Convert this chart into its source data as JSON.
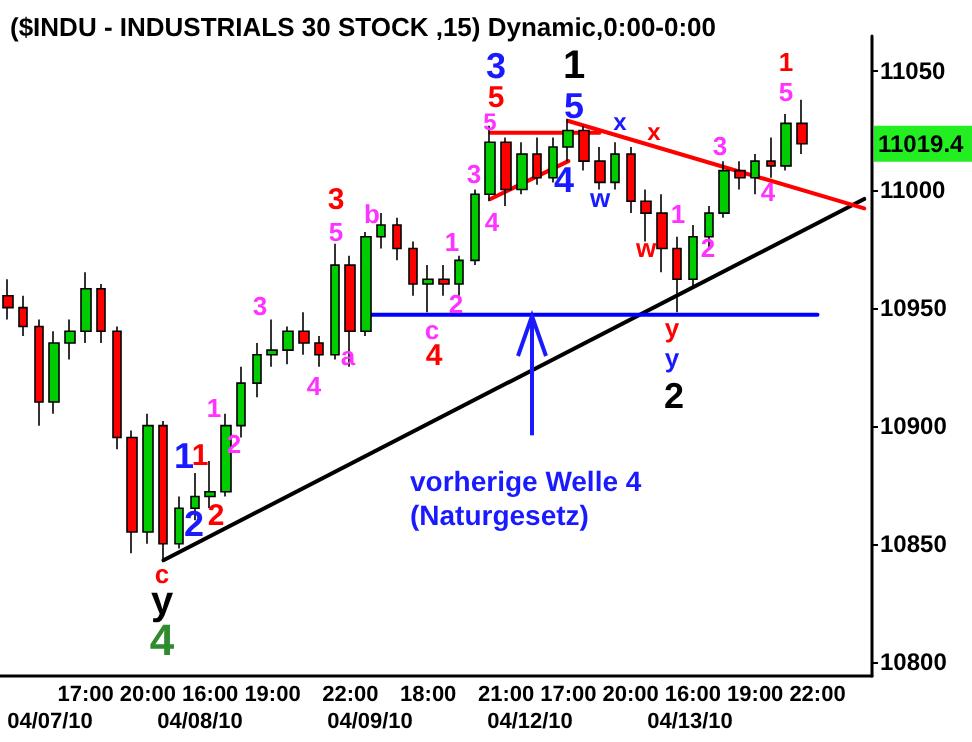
{
  "chart_data": {
    "type": "candlestick",
    "title": "($INDU - INDUSTRIALS 30 STOCK ,15) Dynamic,0:00-0:00",
    "categories": [
      null,
      null,
      null,
      null,
      null,
      "17:00",
      null,
      null,
      null,
      "20:00",
      null,
      null,
      null,
      "16:00",
      null,
      null,
      null,
      "19:00",
      null,
      null,
      null,
      null,
      "22:00",
      null,
      null,
      null,
      null,
      "18:00",
      null,
      null,
      null,
      null,
      "21:00",
      null,
      null,
      null,
      "17:00",
      null,
      null,
      null,
      "20:00",
      null,
      null,
      null,
      "16:00",
      null,
      null,
      null,
      "19:00",
      null,
      null,
      null,
      "22:00",
      null,
      null,
      null
    ],
    "ohlc": [
      [
        10955,
        10962,
        10945,
        10950
      ],
      [
        10950,
        10955,
        10938,
        10942
      ],
      [
        10942,
        10945,
        10900,
        10910
      ],
      [
        10910,
        10940,
        10905,
        10935
      ],
      [
        10935,
        10945,
        10928,
        10940
      ],
      [
        10940,
        10965,
        10935,
        10958
      ],
      [
        10958,
        10960,
        10935,
        10940
      ],
      [
        10940,
        10942,
        10890,
        10895
      ],
      [
        10895,
        10898,
        10846,
        10855
      ],
      [
        10855,
        10905,
        10850,
        10900
      ],
      [
        10900,
        10902,
        10843,
        10850
      ],
      [
        10850,
        10870,
        10848,
        10865
      ],
      [
        10865,
        10880,
        10860,
        10870
      ],
      [
        10870,
        10885,
        10865,
        10872
      ],
      [
        10872,
        10905,
        10870,
        10900
      ],
      [
        10900,
        10925,
        10895,
        10918
      ],
      [
        10918,
        10935,
        10912,
        10930
      ],
      [
        10930,
        10945,
        10925,
        10932
      ],
      [
        10932,
        10942,
        10926,
        10940
      ],
      [
        10940,
        10948,
        10930,
        10935
      ],
      [
        10935,
        10938,
        10925,
        10930
      ],
      [
        10930,
        10977,
        10928,
        10968
      ],
      [
        10968,
        10972,
        10925,
        10940
      ],
      [
        10940,
        10982,
        10938,
        10980
      ],
      [
        10980,
        10990,
        10975,
        10985
      ],
      [
        10985,
        10988,
        10970,
        10975
      ],
      [
        10975,
        10978,
        10955,
        10960
      ],
      [
        10960,
        10968,
        10948,
        10962
      ],
      [
        10962,
        10968,
        10955,
        10960
      ],
      [
        10960,
        10972,
        10955,
        10970
      ],
      [
        10970,
        11000,
        10968,
        10998
      ],
      [
        10998,
        11027,
        10995,
        11020
      ],
      [
        11020,
        11022,
        10993,
        11000
      ],
      [
        11000,
        11020,
        10998,
        11015
      ],
      [
        11015,
        11022,
        11002,
        11005
      ],
      [
        11005,
        11022,
        11003,
        11018
      ],
      [
        11018,
        11030,
        11012,
        11025
      ],
      [
        11025,
        11027,
        11008,
        11012
      ],
      [
        11012,
        11018,
        11000,
        11003
      ],
      [
        11003,
        11020,
        11000,
        11015
      ],
      [
        11015,
        11018,
        10990,
        10995
      ],
      [
        10995,
        11000,
        10978,
        10990
      ],
      [
        10990,
        10998,
        10965,
        10975
      ],
      [
        10975,
        10980,
        10948,
        10962
      ],
      [
        10962,
        10985,
        10958,
        10980
      ],
      [
        10980,
        10993,
        10975,
        10990
      ],
      [
        10990,
        11012,
        10988,
        11008
      ],
      [
        11008,
        11012,
        11000,
        11005
      ],
      [
        11005,
        11015,
        10998,
        11012
      ],
      [
        11012,
        11022,
        11005,
        11010
      ],
      [
        11010,
        11032,
        11008,
        11028
      ],
      [
        11028,
        11038,
        11015,
        11019.4
      ],
      null,
      null,
      null,
      null
    ],
    "series": [
      {
        "type": "line",
        "color": "#000000",
        "values": [
          null,
          null,
          null,
          null,
          null,
          null,
          null,
          null,
          null,
          null,
          10843,
          null,
          null,
          null,
          null,
          null,
          null,
          null,
          null,
          null,
          null,
          null,
          null,
          null,
          null,
          null,
          null,
          null,
          null,
          null,
          null,
          null,
          null,
          null,
          null,
          null,
          null,
          null,
          null,
          null,
          null,
          null,
          null,
          null,
          null,
          null,
          null,
          null,
          null,
          null,
          null,
          null,
          null,
          null,
          null,
          10996
        ]
      },
      {
        "type": "line",
        "color": "#0000ff",
        "values": [
          null,
          null,
          null,
          null,
          null,
          null,
          null,
          null,
          null,
          null,
          null,
          null,
          null,
          null,
          null,
          null,
          null,
          null,
          null,
          null,
          null,
          null,
          null,
          10947,
          null,
          null,
          null,
          null,
          null,
          null,
          null,
          null,
          null,
          null,
          null,
          null,
          null,
          null,
          null,
          null,
          null,
          null,
          null,
          null,
          null,
          null,
          null,
          null,
          null,
          null,
          null,
          null,
          10947,
          null,
          null,
          null
        ]
      },
      {
        "type": "line",
        "color": "#ff0000",
        "values": [
          null,
          null,
          null,
          null,
          null,
          null,
          null,
          null,
          null,
          null,
          null,
          null,
          null,
          null,
          null,
          null,
          null,
          null,
          null,
          null,
          null,
          null,
          null,
          null,
          null,
          null,
          null,
          null,
          null,
          null,
          null,
          11024,
          null,
          null,
          null,
          null,
          null,
          null,
          11024,
          null,
          null,
          null,
          null,
          null,
          null,
          null,
          null,
          null,
          null,
          null,
          null,
          null,
          null,
          null,
          null,
          null
        ]
      },
      {
        "type": "line",
        "color": "#ff0000",
        "values": [
          null,
          null,
          null,
          null,
          null,
          null,
          null,
          null,
          null,
          null,
          null,
          null,
          null,
          null,
          null,
          null,
          null,
          null,
          null,
          null,
          null,
          null,
          null,
          null,
          null,
          null,
          null,
          null,
          null,
          null,
          null,
          10996,
          null,
          null,
          null,
          null,
          11012,
          null,
          null,
          null,
          null,
          null,
          null,
          null,
          null,
          null,
          null,
          null,
          null,
          null,
          null,
          null,
          null,
          null,
          null,
          null
        ]
      },
      {
        "type": "line",
        "color": "#ff0000",
        "values": [
          null,
          null,
          null,
          null,
          null,
          null,
          null,
          null,
          null,
          null,
          null,
          null,
          null,
          null,
          null,
          null,
          null,
          null,
          null,
          null,
          null,
          null,
          null,
          null,
          null,
          null,
          null,
          null,
          null,
          null,
          null,
          null,
          null,
          null,
          null,
          null,
          11029,
          null,
          null,
          null,
          null,
          null,
          null,
          null,
          null,
          null,
          null,
          null,
          null,
          null,
          null,
          null,
          null,
          null,
          null,
          10992
        ]
      }
    ],
    "ylim": [
      10794,
      11065
    ],
    "yticks": [
      10800,
      10850,
      10900,
      10950,
      11000,
      11050
    ],
    "annotations": [
      "3",
      "5",
      "5",
      "1",
      "5",
      "x",
      "x",
      "4",
      "w",
      "3",
      "4",
      "1",
      "5",
      "3",
      "4",
      "1",
      "2",
      "w",
      "y",
      "y",
      "2",
      "3",
      "5",
      "b",
      "3",
      "a",
      "4",
      "1",
      "2",
      "c",
      "4",
      "1",
      "1",
      "1",
      "2",
      "2",
      "2",
      "c",
      "y",
      "4",
      {
        "text": "vorherige Welle 4\n(Naturgesetz)",
        "y": 10947
      },
      "11019.4",
      "04/07/10",
      "04/08/10",
      "04/09/10",
      "04/12/10",
      "04/13/10"
    ]
  }
}
